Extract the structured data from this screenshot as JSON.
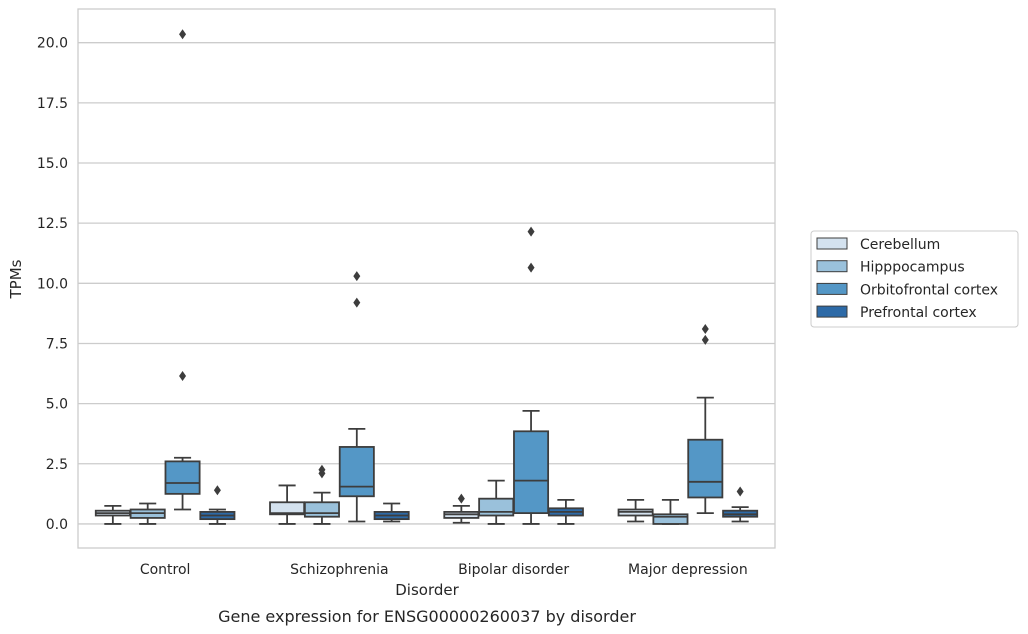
{
  "chart_data": {
    "type": "box",
    "caption": "Gene expression for ENSG00000260037 by disorder",
    "xlabel": "Disorder",
    "ylabel": "TPMs",
    "ylim": [
      -1.0,
      21.4
    ],
    "yticks": [
      "0.0",
      "2.5",
      "5.0",
      "7.5",
      "10.0",
      "12.5",
      "15.0",
      "17.5",
      "20.0"
    ],
    "grid": "horizontal",
    "legend_position": "right",
    "categories": [
      "Control",
      "Schizophrenia",
      "Bipolar disorder",
      "Major depression"
    ],
    "series": [
      {
        "name": "Cerebellum",
        "color": "#d4e2ef",
        "boxes": [
          {
            "whislo": 0.0,
            "q1": 0.35,
            "med": 0.45,
            "q3": 0.55,
            "whishi": 0.75,
            "fliers": []
          },
          {
            "whislo": 0.0,
            "q1": 0.4,
            "med": 0.45,
            "q3": 0.9,
            "whishi": 1.6,
            "fliers": []
          },
          {
            "whislo": 0.05,
            "q1": 0.25,
            "med": 0.4,
            "q3": 0.5,
            "whishi": 0.75,
            "fliers": [
              1.05
            ]
          },
          {
            "whislo": 0.1,
            "q1": 0.35,
            "med": 0.5,
            "q3": 0.6,
            "whishi": 1.0,
            "fliers": []
          }
        ]
      },
      {
        "name": "Hipppocampus",
        "color": "#9ac1db",
        "boxes": [
          {
            "whislo": 0.0,
            "q1": 0.25,
            "med": 0.45,
            "q3": 0.6,
            "whishi": 0.85,
            "fliers": []
          },
          {
            "whislo": 0.0,
            "q1": 0.3,
            "med": 0.45,
            "q3": 0.9,
            "whishi": 1.3,
            "fliers": [
              2.1,
              2.25
            ]
          },
          {
            "whislo": 0.0,
            "q1": 0.35,
            "med": 0.5,
            "q3": 1.05,
            "whishi": 1.8,
            "fliers": []
          },
          {
            "whislo": 0.0,
            "q1": 0.0,
            "med": 0.3,
            "q3": 0.4,
            "whishi": 1.0,
            "fliers": []
          }
        ]
      },
      {
        "name": "Orbitofrontal cortex",
        "color": "#5497c6",
        "boxes": [
          {
            "whislo": 0.6,
            "q1": 1.25,
            "med": 1.7,
            "q3": 2.6,
            "whishi": 2.75,
            "fliers": [
              6.15,
              20.35
            ]
          },
          {
            "whislo": 0.1,
            "q1": 1.15,
            "med": 1.55,
            "q3": 3.2,
            "whishi": 3.95,
            "fliers": [
              9.2,
              10.3
            ]
          },
          {
            "whislo": 0.0,
            "q1": 0.45,
            "med": 1.8,
            "q3": 3.85,
            "whishi": 4.7,
            "fliers": [
              10.65,
              12.15
            ]
          },
          {
            "whislo": 0.45,
            "q1": 1.1,
            "med": 1.75,
            "q3": 3.5,
            "whishi": 5.25,
            "fliers": [
              7.65,
              8.1
            ]
          }
        ]
      },
      {
        "name": "Prefrontal cortex",
        "color": "#2d6aa7",
        "boxes": [
          {
            "whislo": 0.0,
            "q1": 0.2,
            "med": 0.35,
            "q3": 0.5,
            "whishi": 0.6,
            "fliers": [
              1.4
            ]
          },
          {
            "whislo": 0.1,
            "q1": 0.2,
            "med": 0.35,
            "q3": 0.5,
            "whishi": 0.85,
            "fliers": []
          },
          {
            "whislo": 0.0,
            "q1": 0.35,
            "med": 0.5,
            "q3": 0.65,
            "whishi": 1.0,
            "fliers": []
          },
          {
            "whislo": 0.1,
            "q1": 0.3,
            "med": 0.4,
            "q3": 0.55,
            "whishi": 0.7,
            "fliers": [
              1.35
            ]
          }
        ]
      }
    ]
  }
}
